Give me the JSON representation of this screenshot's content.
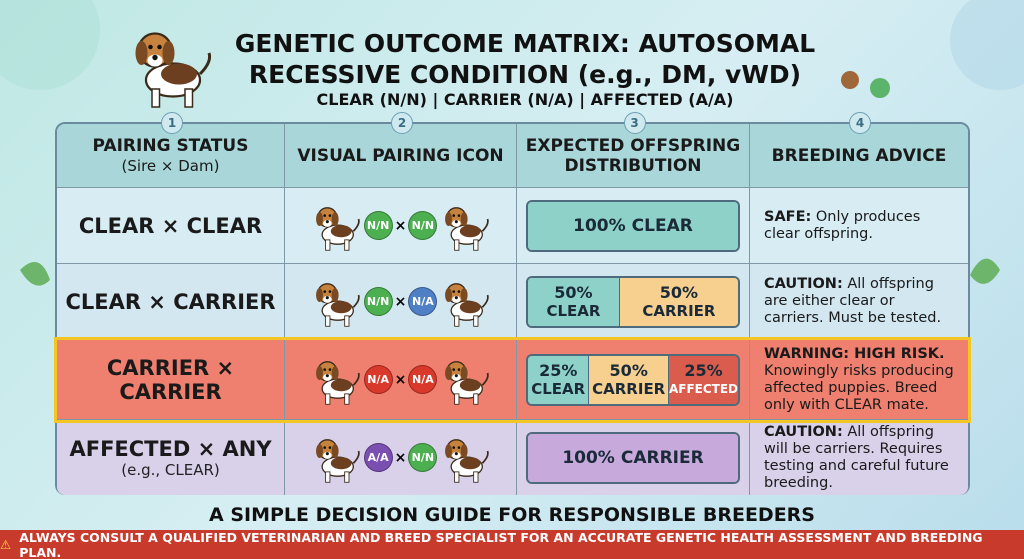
{
  "header": {
    "title": "GENETIC OUTCOME MATRIX: AUTOSOMAL RECESSIVE CONDITION (e.g., DM, vWD)",
    "subtitle": "CLEAR (N/N)  |  CARRIER (N/A)  |  AFFECTED (A/A)"
  },
  "table": {
    "columns": [
      {
        "number": "1",
        "title": "PAIRING STATUS",
        "subtitle": "(Sire × Dam)"
      },
      {
        "number": "2",
        "title": "VISUAL PAIRING ICON"
      },
      {
        "number": "3",
        "title": "EXPECTED OFFSPRING DISTRIBUTION"
      },
      {
        "number": "4",
        "title": "BREEDING ADVICE"
      }
    ],
    "cross": "×",
    "rows": [
      {
        "status": "CLEAR × CLEAR",
        "genotypes": [
          "N/N",
          "N/N"
        ],
        "distribution": [
          {
            "percent": "100%",
            "label": "CLEAR"
          }
        ],
        "advice_lead": "SAFE:",
        "advice": "Only produces clear offspring."
      },
      {
        "status": "CLEAR × CARRIER",
        "genotypes": [
          "N/N",
          "N/A"
        ],
        "distribution": [
          {
            "percent": "50%",
            "label": "CLEAR"
          },
          {
            "percent": "50%",
            "label": "CARRIER"
          }
        ],
        "advice_lead": "CAUTION:",
        "advice": "All offspring are either clear or carriers. Must be tested."
      },
      {
        "status": "CARRIER × CARRIER",
        "genotypes": [
          "N/A",
          "N/A"
        ],
        "distribution": [
          {
            "percent": "25%",
            "label": "CLEAR"
          },
          {
            "percent": "50%",
            "label": "CARRIER"
          },
          {
            "percent": "25%",
            "label": "AFFECTED"
          }
        ],
        "advice_lead": "WARNING: HIGH RISK.",
        "advice": "Knowingly risks producing affected puppies. Breed only with CLEAR mate."
      },
      {
        "status": "AFFECTED × ANY",
        "status_note": "(e.g., CLEAR)",
        "genotypes": [
          "A/A",
          "N/N"
        ],
        "distribution": [
          {
            "percent": "100%",
            "label": "CARRIER"
          }
        ],
        "advice_lead": "CAUTION:",
        "advice": "All offspring will be carriers. Requires testing and careful future breeding."
      }
    ]
  },
  "footer": {
    "guide": "A SIMPLE DECISION GUIDE FOR RESPONSIBLE BREEDERS",
    "warning": "ALWAYS CONSULT A QUALIFIED VETERINARIAN AND BREED SPECIALIST FOR AN ACCURATE GENETIC HEALTH ASSESSMENT AND BREEDING PLAN."
  }
}
